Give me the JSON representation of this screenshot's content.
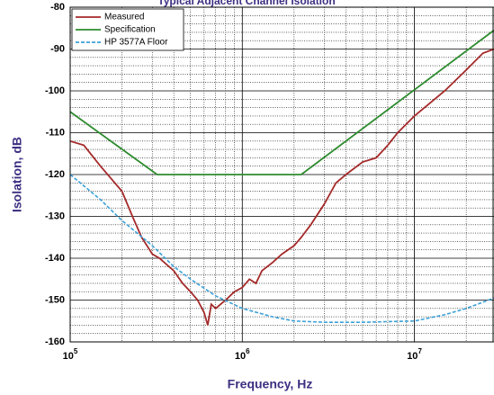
{
  "chart_data": {
    "type": "line",
    "title": "Typical Adjacent Channel Isolation",
    "x_label": "Frequency, Hz",
    "y_label": "Isolation, dB",
    "log_x": true,
    "grid": true,
    "legend_position": "upper-left",
    "xlim": [
      100000,
      29000000
    ],
    "ylim": [
      -160,
      -80
    ],
    "xticks": [
      {
        "value": 100000,
        "label": "10",
        "sup": "5"
      },
      {
        "value": 1000000,
        "label": "10",
        "sup": "6"
      },
      {
        "value": 10000000,
        "label": "10",
        "sup": "7"
      }
    ],
    "minor_xticks": [
      200000,
      300000,
      400000,
      500000,
      600000,
      700000,
      800000,
      900000,
      2000000,
      3000000,
      4000000,
      5000000,
      6000000,
      7000000,
      8000000,
      9000000,
      20000000
    ],
    "yticks": [
      -160,
      -150,
      -140,
      -130,
      -120,
      -110,
      -100,
      -90,
      -80
    ],
    "minor_yticks": [
      -158,
      -156,
      -154,
      -152,
      -148,
      -146,
      -144,
      -142,
      -138,
      -136,
      -134,
      -132,
      -128,
      -126,
      -124,
      -122,
      -118,
      -116,
      -114,
      -112,
      -108,
      -106,
      -104,
      -102,
      -98,
      -96,
      -94,
      -92,
      -88,
      -86,
      -84,
      -82
    ],
    "series": [
      {
        "name": "Measured",
        "color": "#a52a2a",
        "dash": false,
        "x": [
          100000,
          120000,
          150000,
          200000,
          230000,
          260000,
          300000,
          330000,
          400000,
          450000,
          500000,
          550000,
          600000,
          630000,
          660000,
          700000,
          800000,
          900000,
          1000000,
          1100000,
          1200000,
          1300000,
          1500000,
          1700000,
          2000000,
          2200000,
          2500000,
          3000000,
          3500000,
          4000000,
          5000000,
          6000000,
          7000000,
          8000000,
          10000000,
          15000000,
          20000000,
          25000000,
          29000000
        ],
        "values": [
          -112,
          -113,
          -118,
          -124,
          -130,
          -135,
          -139,
          -140,
          -143,
          -146,
          -148,
          -150,
          -153,
          -156,
          -151,
          -152,
          -150,
          -148,
          -147,
          -145,
          -146,
          -143,
          -141,
          -139,
          -137,
          -135,
          -132,
          -127,
          -122,
          -120,
          -117,
          -116,
          -113,
          -110,
          -106,
          -100,
          -95,
          -91,
          -90
        ]
      },
      {
        "name": "Specification",
        "color": "#2e8b2e",
        "dash": false,
        "x": [
          100000,
          320000,
          2200000,
          29000000
        ],
        "values": [
          -105,
          -120,
          -120,
          -85.5
        ]
      },
      {
        "name": "HP 3577A Floor",
        "color": "#3aa0d8",
        "dash": true,
        "x": [
          100000,
          150000,
          200000,
          300000,
          400000,
          500000,
          700000,
          1000000,
          1500000,
          2000000,
          3000000,
          5000000,
          10000000,
          15000000,
          20000000,
          29000000
        ],
        "values": [
          -120,
          -126,
          -131,
          -137,
          -142,
          -145,
          -149,
          -152,
          -154,
          -155,
          -155.3,
          -155.3,
          -155,
          -153.5,
          -152,
          -149.5
        ]
      }
    ]
  }
}
